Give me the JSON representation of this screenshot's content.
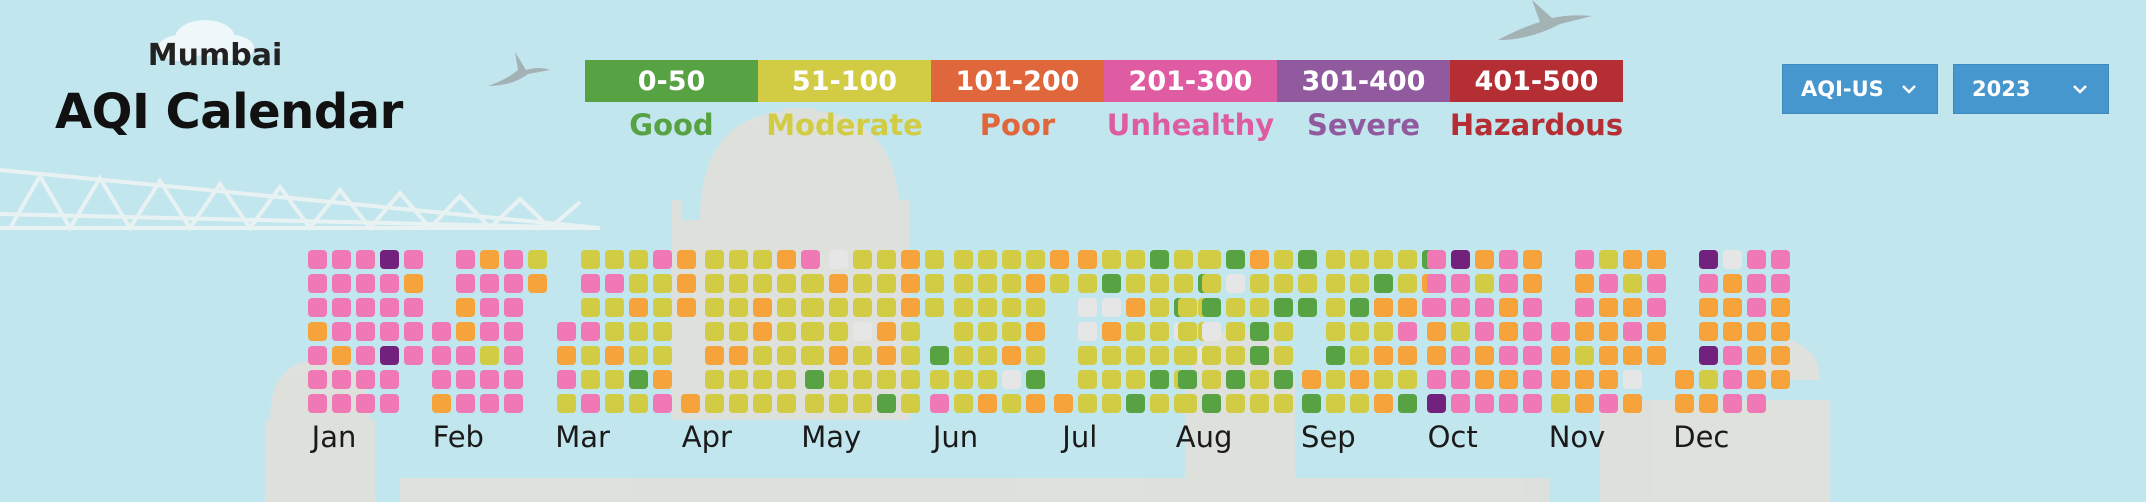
{
  "header": {
    "city": "Mumbai",
    "title": "AQI Calendar"
  },
  "legend": [
    {
      "range": "0-50",
      "label": "Good",
      "color": "#57a343"
    },
    {
      "range": "51-100",
      "label": "Moderate",
      "color": "#d2cc44"
    },
    {
      "range": "101-200",
      "label": "Poor",
      "color": "#e0663b"
    },
    {
      "range": "201-300",
      "label": "Unhealthy",
      "color": "#e05ca2"
    },
    {
      "range": "301-400",
      "label": "Severe",
      "color": "#915a9e"
    },
    {
      "range": "401-500",
      "label": "Hazardous",
      "color": "#b52e34"
    }
  ],
  "controls": {
    "index_select": {
      "value": "AQI-US"
    },
    "year_select": {
      "value": "2023"
    }
  },
  "cell_colors": {
    "G": "#57a343",
    "M": "#d2cc44",
    "O": "#f5a33a",
    "U": "#f078b4",
    "S": "#72217d",
    "X": "#e6e6e6"
  },
  "calendar": {
    "year": "2023",
    "months": [
      {
        "name": "Jan",
        "start": 0,
        "codes": "UUUOUUUUUUUOUUUUUUUUUSUUUSUUUOUUU"
      },
      {
        "name": "Feb",
        "start": 3,
        "codes": "UUUOUUOOUUUOUUUMUUUUUUUUUMO"
      },
      {
        "name": "Mar",
        "start": 3,
        "codes": "UOUMMUMUMMUMUMMOMMMMOMMGMUMMMMOUOOO"
      },
      {
        "name": "Apr",
        "start": 6,
        "codes": "OMMMMOMMMMMMOMMMMOOMMMOMMMMMMUMMMM"
      },
      {
        "name": "May",
        "start": 1,
        "codes": "MMMMGMXOMMOMMMMMXMMMMMMOOMGOOOMMMMMMM"
      },
      {
        "name": "Jun",
        "start": 4,
        "codes": "GMUMMMMMMMMMMMMMOMMMMOXMMOMOMGOOM"
      },
      {
        "name": "Jul",
        "start": 6,
        "codes": "OOMXXMMMMGXOMMMMMOMMMGGMMMMGMMMGXMMMMGMMX"
      },
      {
        "name": "Aug",
        "start": 2,
        "codes": "MMMGMMMGXMMGGXMMMGMOMMGGMMMMGMMGMGMG"
      },
      {
        "name": "Sep",
        "start": 5,
        "codes": "OGMMMMGMMMMGMMOMMGOMOMOMMOUOMGGOU"
      },
      {
        "name": "Oct",
        "start": 0,
        "codes": "UUUOOUSSUUMUUUOMUUOOUUUOOUOUOOUUUUU"
      },
      {
        "name": "Nov",
        "start": 3,
        "codes": "UOOMUOUOMOOMUOOOOUOMOUOXOOUUOO"
      },
      {
        "name": "Dec",
        "start": 5,
        "codes": "OOSUOOSMOXOOOUUUUUUOOOUUUOOOO"
      }
    ]
  }
}
